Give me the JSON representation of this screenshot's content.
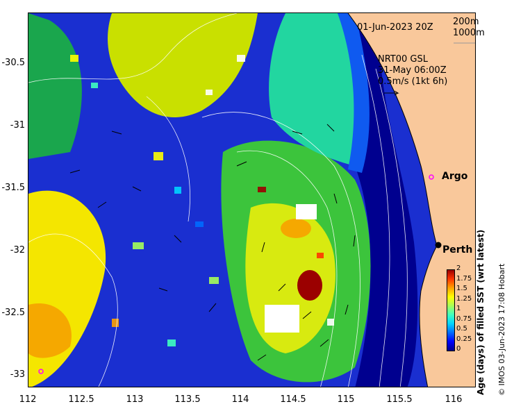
{
  "map": {
    "date_label": "01-Jun-2023 20Z",
    "isobath_short": "200m",
    "isobath_long": "1000m",
    "current_product": "NRT00 GSL",
    "current_time": "31-May 06:00Z",
    "current_scale": "0.5m/s (1kt 6h)",
    "places": {
      "perth": "Perth",
      "argo": "Argo"
    },
    "y_ticks": [
      "-30.5",
      "-31",
      "-31.5",
      "-32",
      "-32.5",
      "-33"
    ],
    "x_ticks": [
      "112",
      "112.5",
      "113",
      "113.5",
      "114",
      "114.5",
      "115",
      "115.5",
      "116"
    ],
    "colorbar": {
      "title": "Age (days) of filled SST (wrt latest)",
      "labels": [
        "2",
        "1.75",
        "1.5",
        "1.25",
        "1",
        "0.75",
        "0.5",
        "0.25",
        "0"
      ],
      "colors": [
        "#00008f",
        "#0000ff",
        "#006bff",
        "#00d4ff",
        "#3fffbf",
        "#a6ff59",
        "#ffff00",
        "#ffa200",
        "#ff3500",
        "#9b0000"
      ]
    },
    "credit": "© IMOS 03-Jun-2023 17:08 Hobart",
    "colors": {
      "land": "#f9c89b",
      "arrow": "#000000",
      "contour": "#ffffff"
    }
  }
}
